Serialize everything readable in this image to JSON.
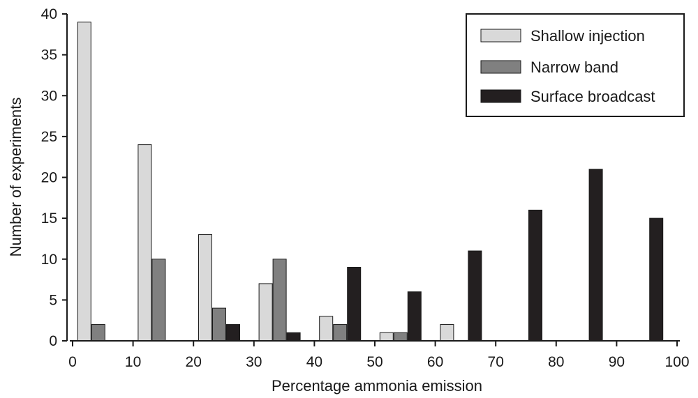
{
  "chart_data": {
    "type": "bar",
    "xlabel": "Percentage ammonia emission",
    "ylabel": "Number of experiments",
    "xlim": [
      0,
      100
    ],
    "ylim": [
      0,
      40
    ],
    "x_ticks": [
      0,
      10,
      20,
      30,
      40,
      50,
      60,
      70,
      80,
      90,
      100
    ],
    "y_ticks": [
      0,
      5,
      10,
      15,
      20,
      25,
      30,
      35,
      40
    ],
    "bin_centers": [
      5,
      15,
      25,
      35,
      45,
      55,
      65,
      75,
      85,
      95
    ],
    "series": [
      {
        "name": "Shallow injection",
        "color": "#d9d9d9",
        "values": [
          39,
          24,
          13,
          7,
          3,
          1,
          2,
          0,
          0,
          0
        ]
      },
      {
        "name": "Narrow band",
        "color": "#808080",
        "values": [
          2,
          10,
          4,
          10,
          2,
          1,
          0,
          0,
          0,
          0
        ]
      },
      {
        "name": "Surface broadcast",
        "color": "#231f20",
        "values": [
          0,
          0,
          2,
          1,
          9,
          6,
          11,
          16,
          21,
          15
        ]
      }
    ],
    "legend_position": "top-right",
    "grid": false
  }
}
